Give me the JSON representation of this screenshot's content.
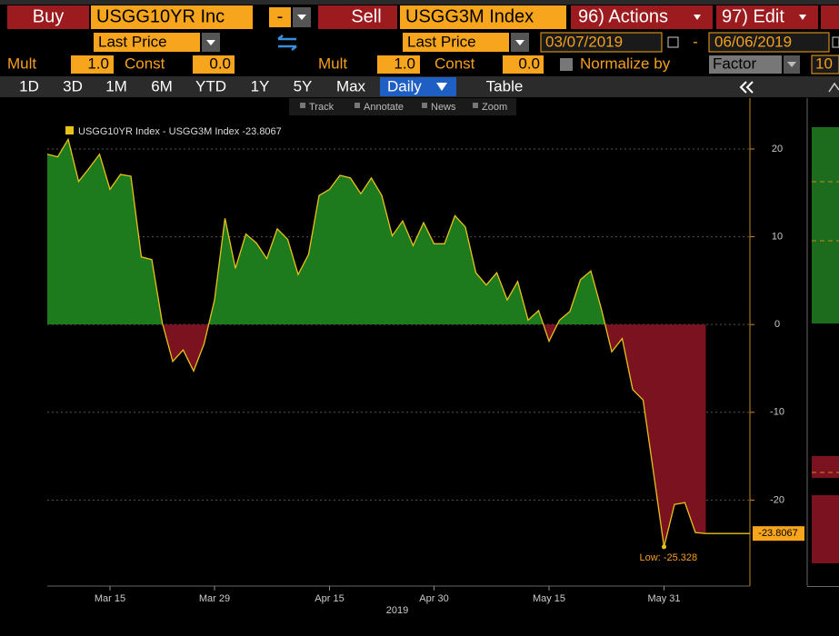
{
  "toolbar": {
    "buy": "Buy",
    "security1": "USGG10YR Inc",
    "operator": "-",
    "sell": "Sell",
    "security2": "USGG3M Index",
    "actions": "96) Actions",
    "edit": "97) Edit"
  },
  "settings": {
    "field1": "Last Price",
    "field2": "Last Price",
    "start_date": "03/07/2019",
    "date_separator": "-",
    "end_date": "06/06/2019",
    "left": {
      "mult_label": "Mult",
      "mult": "1.0",
      "const_label": "Const",
      "const": "0.0"
    },
    "right": {
      "mult_label": "Mult",
      "mult": "1.0",
      "const_label": "Const",
      "const": "0.0"
    },
    "normalize_label": "Normalize by",
    "normalize_value": "Factor",
    "normalize_extra": "10"
  },
  "periods": [
    "1D",
    "3D",
    "1M",
    "6M",
    "YTD",
    "1Y",
    "5Y",
    "Max"
  ],
  "frequency": "Daily",
  "table": "Table",
  "tools": [
    "Track",
    "Annotate",
    "News",
    "Zoom"
  ],
  "chart_data": {
    "type": "area",
    "series_name": "USGG10YR Index - USGG3M Index",
    "x": [
      "2019-03-07",
      "2019-03-08",
      "2019-03-11",
      "2019-03-12",
      "2019-03-13",
      "2019-03-14",
      "2019-03-15",
      "2019-03-18",
      "2019-03-19",
      "2019-03-20",
      "2019-03-21",
      "2019-03-22",
      "2019-03-25",
      "2019-03-26",
      "2019-03-27",
      "2019-03-28",
      "2019-03-29",
      "2019-04-01",
      "2019-04-02",
      "2019-04-03",
      "2019-04-04",
      "2019-04-05",
      "2019-04-08",
      "2019-04-09",
      "2019-04-10",
      "2019-04-11",
      "2019-04-12",
      "2019-04-15",
      "2019-04-16",
      "2019-04-17",
      "2019-04-18",
      "2019-04-22",
      "2019-04-23",
      "2019-04-24",
      "2019-04-25",
      "2019-04-26",
      "2019-04-29",
      "2019-04-30",
      "2019-05-01",
      "2019-05-02",
      "2019-05-03",
      "2019-05-06",
      "2019-05-07",
      "2019-05-08",
      "2019-05-09",
      "2019-05-10",
      "2019-05-13",
      "2019-05-14",
      "2019-05-15",
      "2019-05-16",
      "2019-05-17",
      "2019-05-20",
      "2019-05-21",
      "2019-05-22",
      "2019-05-23",
      "2019-05-24",
      "2019-05-28",
      "2019-05-29",
      "2019-05-30",
      "2019-05-31",
      "2019-06-03",
      "2019-06-04",
      "2019-06-05",
      "2019-06-06"
    ],
    "values": [
      19.4,
      19.1,
      21.1,
      16.3,
      17.8,
      19.4,
      15.4,
      17.1,
      16.9,
      7.7,
      7.4,
      0.2,
      -4.2,
      -2.9,
      -5.3,
      -2.2,
      2.8,
      12.1,
      6.4,
      10.3,
      9.3,
      7.5,
      10.9,
      9.7,
      5.7,
      8.0,
      14.7,
      15.4,
      17.0,
      16.7,
      14.9,
      16.7,
      14.7,
      10.1,
      11.8,
      9.0,
      11.6,
      9.2,
      9.2,
      12.4,
      11.1,
      5.9,
      4.5,
      5.9,
      2.8,
      4.9,
      0.5,
      1.6,
      -1.9,
      0.5,
      1.5,
      5.1,
      6.1,
      1.8,
      -3.1,
      -1.6,
      -7.4,
      -8.6,
      -16.9,
      -25.328,
      -20.5,
      -20.3,
      -23.7,
      -23.8067
    ],
    "xticks": [
      {
        "value": "2019-03-15",
        "label": "Mar 15"
      },
      {
        "value": "2019-03-29",
        "label": "Mar 29"
      },
      {
        "value": "2019-04-15",
        "label": "Apr 15"
      },
      {
        "value": "2019-04-30",
        "label": "Apr 30"
      },
      {
        "value": "2019-05-15",
        "label": "May 15"
      },
      {
        "value": "2019-05-31",
        "label": "May 31"
      }
    ],
    "xlabel": "2019",
    "ylim": [
      -30,
      26
    ],
    "yticks": [
      20,
      10,
      0,
      -10,
      -20
    ],
    "grid": true,
    "line_color": "#e8c21c",
    "positive_color": "#1d7a1d",
    "negative_color": "#7a1220",
    "low_label": "Low:"
  }
}
